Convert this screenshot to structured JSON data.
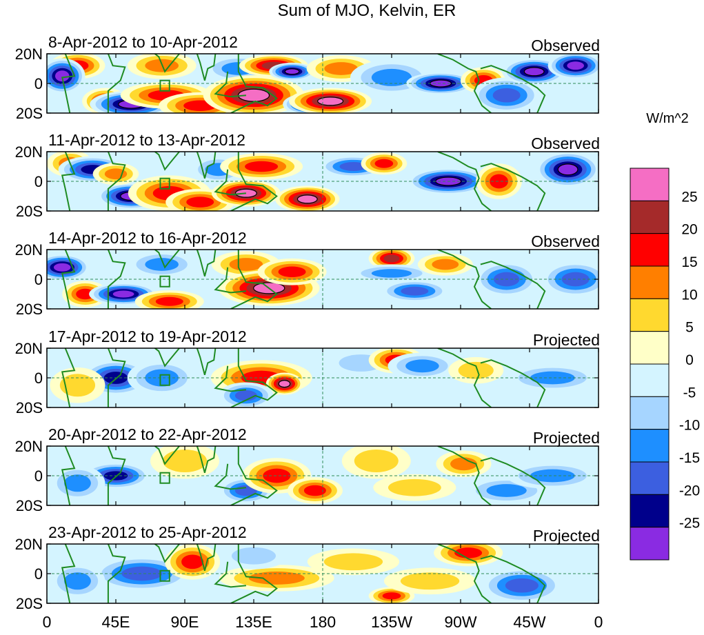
{
  "chart_data": {
    "type": "heatmap",
    "title": "Sum of MJO, Kelvin, ER",
    "units_label": "W/m^2",
    "x_tick_labels": [
      "0",
      "45E",
      "90E",
      "135E",
      "180",
      "135W",
      "90W",
      "45W",
      "0"
    ],
    "x_tick_values_deg_east": [
      0,
      45,
      90,
      135,
      180,
      225,
      270,
      315,
      360
    ],
    "y_tick_labels": [
      "20N",
      "0",
      "20S"
    ],
    "y_tick_values_deg_north": [
      20,
      0,
      -20
    ],
    "xlim": [
      0,
      360
    ],
    "ylim": [
      -20,
      20
    ],
    "colorbar": {
      "tick_labels": [
        "25",
        "20",
        "15",
        "10",
        "5",
        "0",
        "-5",
        "-10",
        "-15",
        "-20",
        "-25"
      ],
      "colors": [
        "#f56ec4",
        "#a52a2a",
        "#ff0000",
        "#ff7f00",
        "#ffd92f",
        "#ffffc8",
        "#d4f4ff",
        "#a6d5ff",
        "#1e8fff",
        "#3c5fe0",
        "#00008b",
        "#8a2be2"
      ]
    },
    "panels": [
      {
        "date_label": "8-Apr-2012 to 10-Apr-2012",
        "status": "Observed",
        "anomalies": [
          {
            "lon": 20,
            "lat": 12,
            "value": 18,
            "rlon": 12,
            "rlat": 6
          },
          {
            "lon": 38,
            "lat": -12,
            "value": 15,
            "rlon": 10,
            "rlat": 6
          },
          {
            "lon": 55,
            "lat": -14,
            "value": -30,
            "rlon": 18,
            "rlat": 6
          },
          {
            "lon": 10,
            "lat": 5,
            "value": -25,
            "rlon": 10,
            "rlat": 8
          },
          {
            "lon": 75,
            "lat": 12,
            "value": 12,
            "rlon": 15,
            "rlat": 6
          },
          {
            "lon": 78,
            "lat": -8,
            "value": 15,
            "rlon": 20,
            "rlat": 6
          },
          {
            "lon": 100,
            "lat": -15,
            "value": 18,
            "rlon": 18,
            "rlat": 6
          },
          {
            "lon": 125,
            "lat": 10,
            "value": -10,
            "rlon": 15,
            "rlat": 6
          },
          {
            "lon": 135,
            "lat": -8,
            "value": 28,
            "rlon": 22,
            "rlat": 9
          },
          {
            "lon": 148,
            "lat": 12,
            "value": 22,
            "rlon": 15,
            "rlat": 5
          },
          {
            "lon": 160,
            "lat": 8,
            "value": -30,
            "rlon": 10,
            "rlat": 4
          },
          {
            "lon": 172,
            "lat": -14,
            "value": -30,
            "rlon": 12,
            "rlat": 5
          },
          {
            "lon": 192,
            "lat": 10,
            "value": 12,
            "rlon": 15,
            "rlat": 6
          },
          {
            "lon": 185,
            "lat": -12,
            "value": 28,
            "rlon": 18,
            "rlat": 6
          },
          {
            "lon": 225,
            "lat": 4,
            "value": -10,
            "rlon": 18,
            "rlat": 8
          },
          {
            "lon": 257,
            "lat": 0,
            "value": -30,
            "rlon": 15,
            "rlat": 5
          },
          {
            "lon": 285,
            "lat": 2,
            "value": 15,
            "rlon": 10,
            "rlat": 6
          },
          {
            "lon": 300,
            "lat": -8,
            "value": -15,
            "rlon": 15,
            "rlat": 8
          },
          {
            "lon": 318,
            "lat": 8,
            "value": -28,
            "rlon": 14,
            "rlat": 6
          },
          {
            "lon": 345,
            "lat": 12,
            "value": -25,
            "rlon": 12,
            "rlat": 6
          }
        ]
      },
      {
        "date_label": "11-Apr-2012 to 13-Apr-2012",
        "status": "Observed",
        "anomalies": [
          {
            "lon": 15,
            "lat": 12,
            "value": 12,
            "rlon": 10,
            "rlat": 6
          },
          {
            "lon": 30,
            "lat": 8,
            "value": -22,
            "rlon": 15,
            "rlat": 6
          },
          {
            "lon": 55,
            "lat": -10,
            "value": -30,
            "rlon": 15,
            "rlat": 6
          },
          {
            "lon": 45,
            "lat": 5,
            "value": 12,
            "rlon": 10,
            "rlat": 5
          },
          {
            "lon": 80,
            "lat": -8,
            "value": 18,
            "rlon": 18,
            "rlat": 8
          },
          {
            "lon": 100,
            "lat": -14,
            "value": 15,
            "rlon": 15,
            "rlat": 6
          },
          {
            "lon": 112,
            "lat": 8,
            "value": -10,
            "rlon": 12,
            "rlat": 6
          },
          {
            "lon": 130,
            "lat": -8,
            "value": 28,
            "rlon": 15,
            "rlat": 6
          },
          {
            "lon": 140,
            "lat": 10,
            "value": 15,
            "rlon": 18,
            "rlat": 6
          },
          {
            "lon": 170,
            "lat": -12,
            "value": 28,
            "rlon": 14,
            "rlat": 6
          },
          {
            "lon": 200,
            "lat": 10,
            "value": -15,
            "rlon": 15,
            "rlat": 5
          },
          {
            "lon": 220,
            "lat": 12,
            "value": 15,
            "rlon": 10,
            "rlat": 5
          },
          {
            "lon": 262,
            "lat": 0,
            "value": -28,
            "rlon": 18,
            "rlat": 6
          },
          {
            "lon": 295,
            "lat": 0,
            "value": 15,
            "rlon": 10,
            "rlat": 8
          },
          {
            "lon": 340,
            "lat": 8,
            "value": -28,
            "rlon": 14,
            "rlat": 8
          }
        ]
      },
      {
        "date_label": "14-Apr-2012 to 16-Apr-2012",
        "status": "Observed",
        "anomalies": [
          {
            "lon": 10,
            "lat": 8,
            "value": -25,
            "rlon": 12,
            "rlat": 6
          },
          {
            "lon": 25,
            "lat": -10,
            "value": 15,
            "rlon": 10,
            "rlat": 6
          },
          {
            "lon": 50,
            "lat": -10,
            "value": -25,
            "rlon": 15,
            "rlat": 5
          },
          {
            "lon": 80,
            "lat": -15,
            "value": 15,
            "rlon": 15,
            "rlat": 5
          },
          {
            "lon": 75,
            "lat": 10,
            "value": -12,
            "rlon": 15,
            "rlat": 6
          },
          {
            "lon": 130,
            "lat": 10,
            "value": 10,
            "rlon": 15,
            "rlat": 6
          },
          {
            "lon": 145,
            "lat": -6,
            "value": 28,
            "rlon": 22,
            "rlat": 8
          },
          {
            "lon": 160,
            "lat": 5,
            "value": 15,
            "rlon": 15,
            "rlat": 6
          },
          {
            "lon": 225,
            "lat": 14,
            "value": 20,
            "rlon": 10,
            "rlat": 5
          },
          {
            "lon": 225,
            "lat": 4,
            "value": -10,
            "rlon": 18,
            "rlat": 4
          },
          {
            "lon": 260,
            "lat": 10,
            "value": 10,
            "rlon": 12,
            "rlat": 5
          },
          {
            "lon": 240,
            "lat": -8,
            "value": -15,
            "rlon": 15,
            "rlat": 5
          },
          {
            "lon": 300,
            "lat": 0,
            "value": -18,
            "rlon": 14,
            "rlat": 8
          },
          {
            "lon": 345,
            "lat": 0,
            "value": -15,
            "rlon": 15,
            "rlat": 8
          }
        ]
      },
      {
        "date_label": "17-Apr-2012 to 19-Apr-2012",
        "status": "Projected",
        "anomalies": [
          {
            "lon": 45,
            "lat": 0,
            "value": -20,
            "rlon": 15,
            "rlat": 8
          },
          {
            "lon": 20,
            "lat": -5,
            "value": 8,
            "rlon": 12,
            "rlat": 8
          },
          {
            "lon": 75,
            "lat": 0,
            "value": -10,
            "rlon": 15,
            "rlat": 8
          },
          {
            "lon": 140,
            "lat": 0,
            "value": 15,
            "rlon": 22,
            "rlat": 8
          },
          {
            "lon": 155,
            "lat": -4,
            "value": 28,
            "rlon": 8,
            "rlat": 5
          },
          {
            "lon": 130,
            "lat": -12,
            "value": -15,
            "rlon": 12,
            "rlat": 6
          },
          {
            "lon": 205,
            "lat": 10,
            "value": -8,
            "rlon": 15,
            "rlat": 6
          },
          {
            "lon": 228,
            "lat": 12,
            "value": 18,
            "rlon": 12,
            "rlat": 6
          },
          {
            "lon": 245,
            "lat": 8,
            "value": -10,
            "rlon": 15,
            "rlat": 6
          },
          {
            "lon": 280,
            "lat": 5,
            "value": 6,
            "rlon": 12,
            "rlat": 6
          },
          {
            "lon": 330,
            "lat": 0,
            "value": -10,
            "rlon": 20,
            "rlat": 6
          }
        ]
      },
      {
        "date_label": "20-Apr-2012 to 22-Apr-2012",
        "status": "Projected",
        "anomalies": [
          {
            "lon": 45,
            "lat": 0,
            "value": -20,
            "rlon": 15,
            "rlat": 6
          },
          {
            "lon": 20,
            "lat": -5,
            "value": -10,
            "rlon": 12,
            "rlat": 8
          },
          {
            "lon": 90,
            "lat": 10,
            "value": 8,
            "rlon": 15,
            "rlat": 8
          },
          {
            "lon": 130,
            "lat": -10,
            "value": -15,
            "rlon": 12,
            "rlat": 6
          },
          {
            "lon": 150,
            "lat": 0,
            "value": 18,
            "rlon": 15,
            "rlat": 8
          },
          {
            "lon": 175,
            "lat": -10,
            "value": 15,
            "rlon": 12,
            "rlat": 6
          },
          {
            "lon": 215,
            "lat": 10,
            "value": 8,
            "rlon": 15,
            "rlat": 8
          },
          {
            "lon": 240,
            "lat": -8,
            "value": 8,
            "rlon": 18,
            "rlat": 6
          },
          {
            "lon": 272,
            "lat": 8,
            "value": 12,
            "rlon": 12,
            "rlat": 6
          },
          {
            "lon": 300,
            "lat": -10,
            "value": -12,
            "rlon": 18,
            "rlat": 6
          },
          {
            "lon": 330,
            "lat": 0,
            "value": -10,
            "rlon": 20,
            "rlat": 6
          }
        ]
      },
      {
        "date_label": "23-Apr-2012 to 25-Apr-2012",
        "status": "Projected",
        "anomalies": [
          {
            "lon": 62,
            "lat": 0,
            "value": -18,
            "rlon": 22,
            "rlat": 8
          },
          {
            "lon": 20,
            "lat": -5,
            "value": -12,
            "rlon": 12,
            "rlat": 8
          },
          {
            "lon": 95,
            "lat": 8,
            "value": 15,
            "rlon": 12,
            "rlat": 8
          },
          {
            "lon": 150,
            "lat": -3,
            "value": 10,
            "rlon": 25,
            "rlat": 6
          },
          {
            "lon": 135,
            "lat": 12,
            "value": -5,
            "rlon": 15,
            "rlat": 6
          },
          {
            "lon": 225,
            "lat": -15,
            "value": 15,
            "rlon": 10,
            "rlat": 4
          },
          {
            "lon": 275,
            "lat": 14,
            "value": 15,
            "rlon": 15,
            "rlat": 6
          },
          {
            "lon": 310,
            "lat": -8,
            "value": -15,
            "rlon": 18,
            "rlat": 8
          },
          {
            "lon": 200,
            "lat": 8,
            "value": 6,
            "rlon": 20,
            "rlat": 6
          },
          {
            "lon": 250,
            "lat": -5,
            "value": 5,
            "rlon": 20,
            "rlat": 6
          }
        ]
      }
    ]
  }
}
